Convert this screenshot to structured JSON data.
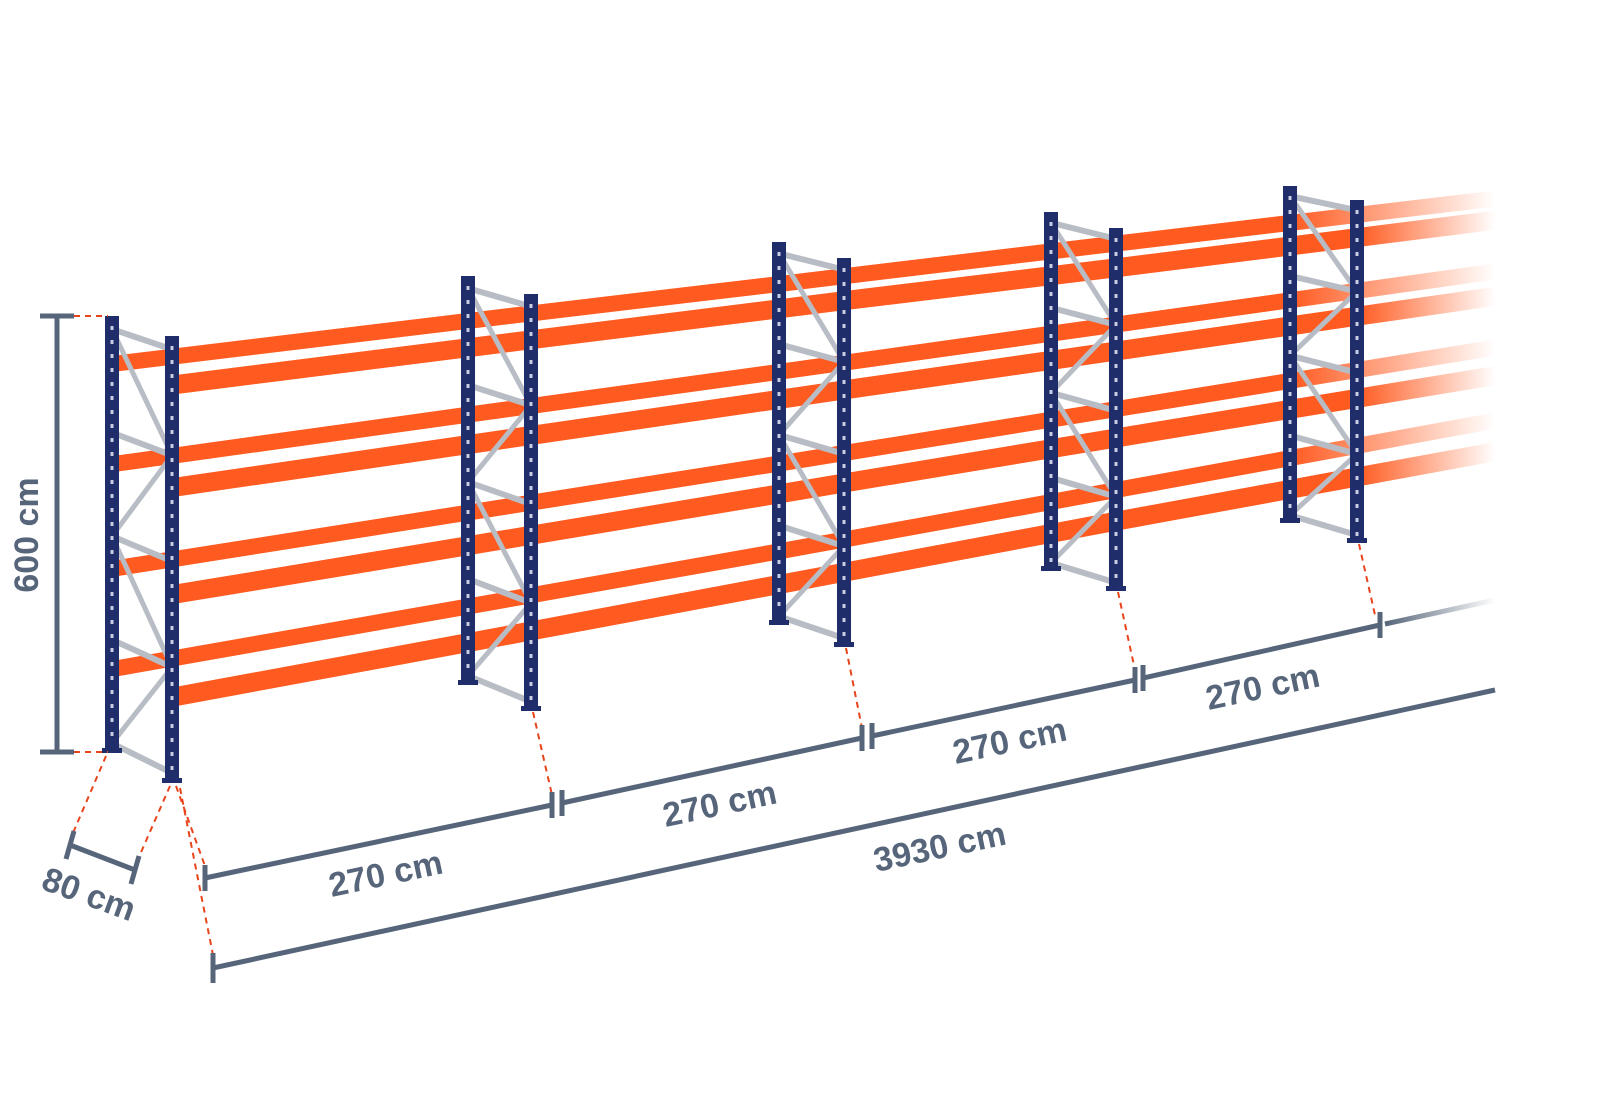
{
  "colors": {
    "upright": "#1f2d6b",
    "beam": "#ff5a1f",
    "brace": "#b8bcc4",
    "dimension": "#56657a",
    "guide": "#e8441c"
  },
  "dimensions": {
    "height_label": "600 cm",
    "depth_label": "80 cm",
    "bay_labels": [
      "270 cm",
      "270 cm",
      "270 cm",
      "270 cm"
    ],
    "total_label": "3930 cm"
  }
}
